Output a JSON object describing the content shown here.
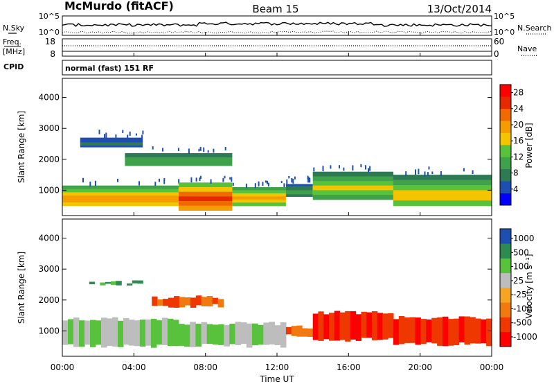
{
  "header": {
    "station": "McMurdo (fitACF)",
    "beam": "Beam 15",
    "date": "13/Oct/2014"
  },
  "strips": {
    "nsky_label": "N.Sky",
    "nsearch_label": "N.Search",
    "noise_ticks_left": [
      "10^5",
      "10^0"
    ],
    "noise_ticks_right": [
      "10^5",
      "10^0"
    ],
    "freq_label": "Freq.",
    "freq_unit": "[MHz]",
    "freq_ticks": [
      "18",
      "8"
    ],
    "nave_label": "Nave",
    "nave_ticks": [
      "60",
      "0"
    ],
    "cpid_label": "CPID",
    "cpid_text": "normal (fast) 151 RF"
  },
  "colors": {
    "power": [
      "#0000ff",
      "#1e4fb0",
      "#2e7a55",
      "#3fa24a",
      "#58c23c",
      "#f5c400",
      "#f49c00",
      "#f06a00",
      "#e52a00",
      "#ff0000"
    ],
    "velocity": [
      "#ff0000",
      "#ee3800",
      "#f07a10",
      "#f6a422",
      "#bdbdbd",
      "#58c23c",
      "#2e8a50",
      "#1e4fb0"
    ]
  },
  "chart_data": [
    {
      "type": "heatmap",
      "panel": "power",
      "ylabel": "Slant Range [km]",
      "yticks": [
        "1000",
        "2000",
        "3000",
        "4000"
      ],
      "ylim": [
        180,
        4620
      ],
      "xlim": [
        0,
        24
      ],
      "colorbar_label": "Power [dB]",
      "colorbar_ticks": [
        "4",
        "8",
        "12",
        "16",
        "20",
        "24",
        "28"
      ],
      "colorbar_range": [
        0,
        30
      ],
      "bands": [
        {
          "t0": 0.0,
          "t1": 6.5,
          "r0": 500,
          "r1": 1150,
          "level": 22
        },
        {
          "t0": 6.5,
          "t1": 9.5,
          "r0": 350,
          "r1": 1250,
          "level": 28
        },
        {
          "t0": 9.5,
          "t1": 12.5,
          "r0": 500,
          "r1": 1100,
          "level": 20
        },
        {
          "t0": 12.5,
          "t1": 14.0,
          "r0": 800,
          "r1": 1200,
          "level": 10
        },
        {
          "t0": 14.0,
          "t1": 18.5,
          "r0": 700,
          "r1": 1600,
          "level": 16
        },
        {
          "t0": 18.5,
          "t1": 24.0,
          "r0": 500,
          "r1": 1500,
          "level": 18
        },
        {
          "t0": 3.5,
          "t1": 9.5,
          "r0": 1800,
          "r1": 2200,
          "level": 12
        },
        {
          "t0": 1.0,
          "t1": 4.5,
          "r0": 2400,
          "r1": 2700,
          "level": 6
        }
      ]
    },
    {
      "type": "heatmap",
      "panel": "velocity",
      "xlabel": "Time UT",
      "ylabel": "Slant Range [km]",
      "yticks": [
        "1000",
        "2000",
        "3000",
        "4000"
      ],
      "ylim": [
        180,
        4620
      ],
      "xlim": [
        0,
        24
      ],
      "xticks": [
        "00:00",
        "04:00",
        "08:00",
        "12:00",
        "16:00",
        "20:00",
        "00:00"
      ],
      "colorbar_label": "Velocity [m s⁻¹]",
      "colorbar_ticks": [
        "1000",
        "500",
        "100",
        "25",
        "-25",
        "-100",
        "-500",
        "-1000"
      ],
      "bands": [
        {
          "t0": 0.0,
          "t1": 6.5,
          "r0": 450,
          "r1": 1450,
          "velocity": 100
        },
        {
          "t0": 6.5,
          "t1": 12.5,
          "r0": 450,
          "r1": 1300,
          "velocity": 100
        },
        {
          "t0": 12.5,
          "t1": 14.0,
          "r0": 800,
          "r1": 1200,
          "velocity": -100
        },
        {
          "t0": 14.0,
          "t1": 18.5,
          "r0": 650,
          "r1": 1650,
          "velocity": -500
        },
        {
          "t0": 18.5,
          "t1": 24.0,
          "r0": 500,
          "r1": 1500,
          "velocity": -500
        },
        {
          "t0": 5.0,
          "t1": 9.0,
          "r0": 1750,
          "r1": 2150,
          "velocity": -100
        },
        {
          "t0": 1.5,
          "t1": 4.5,
          "r0": 2450,
          "r1": 2650,
          "velocity": 500
        }
      ]
    }
  ]
}
